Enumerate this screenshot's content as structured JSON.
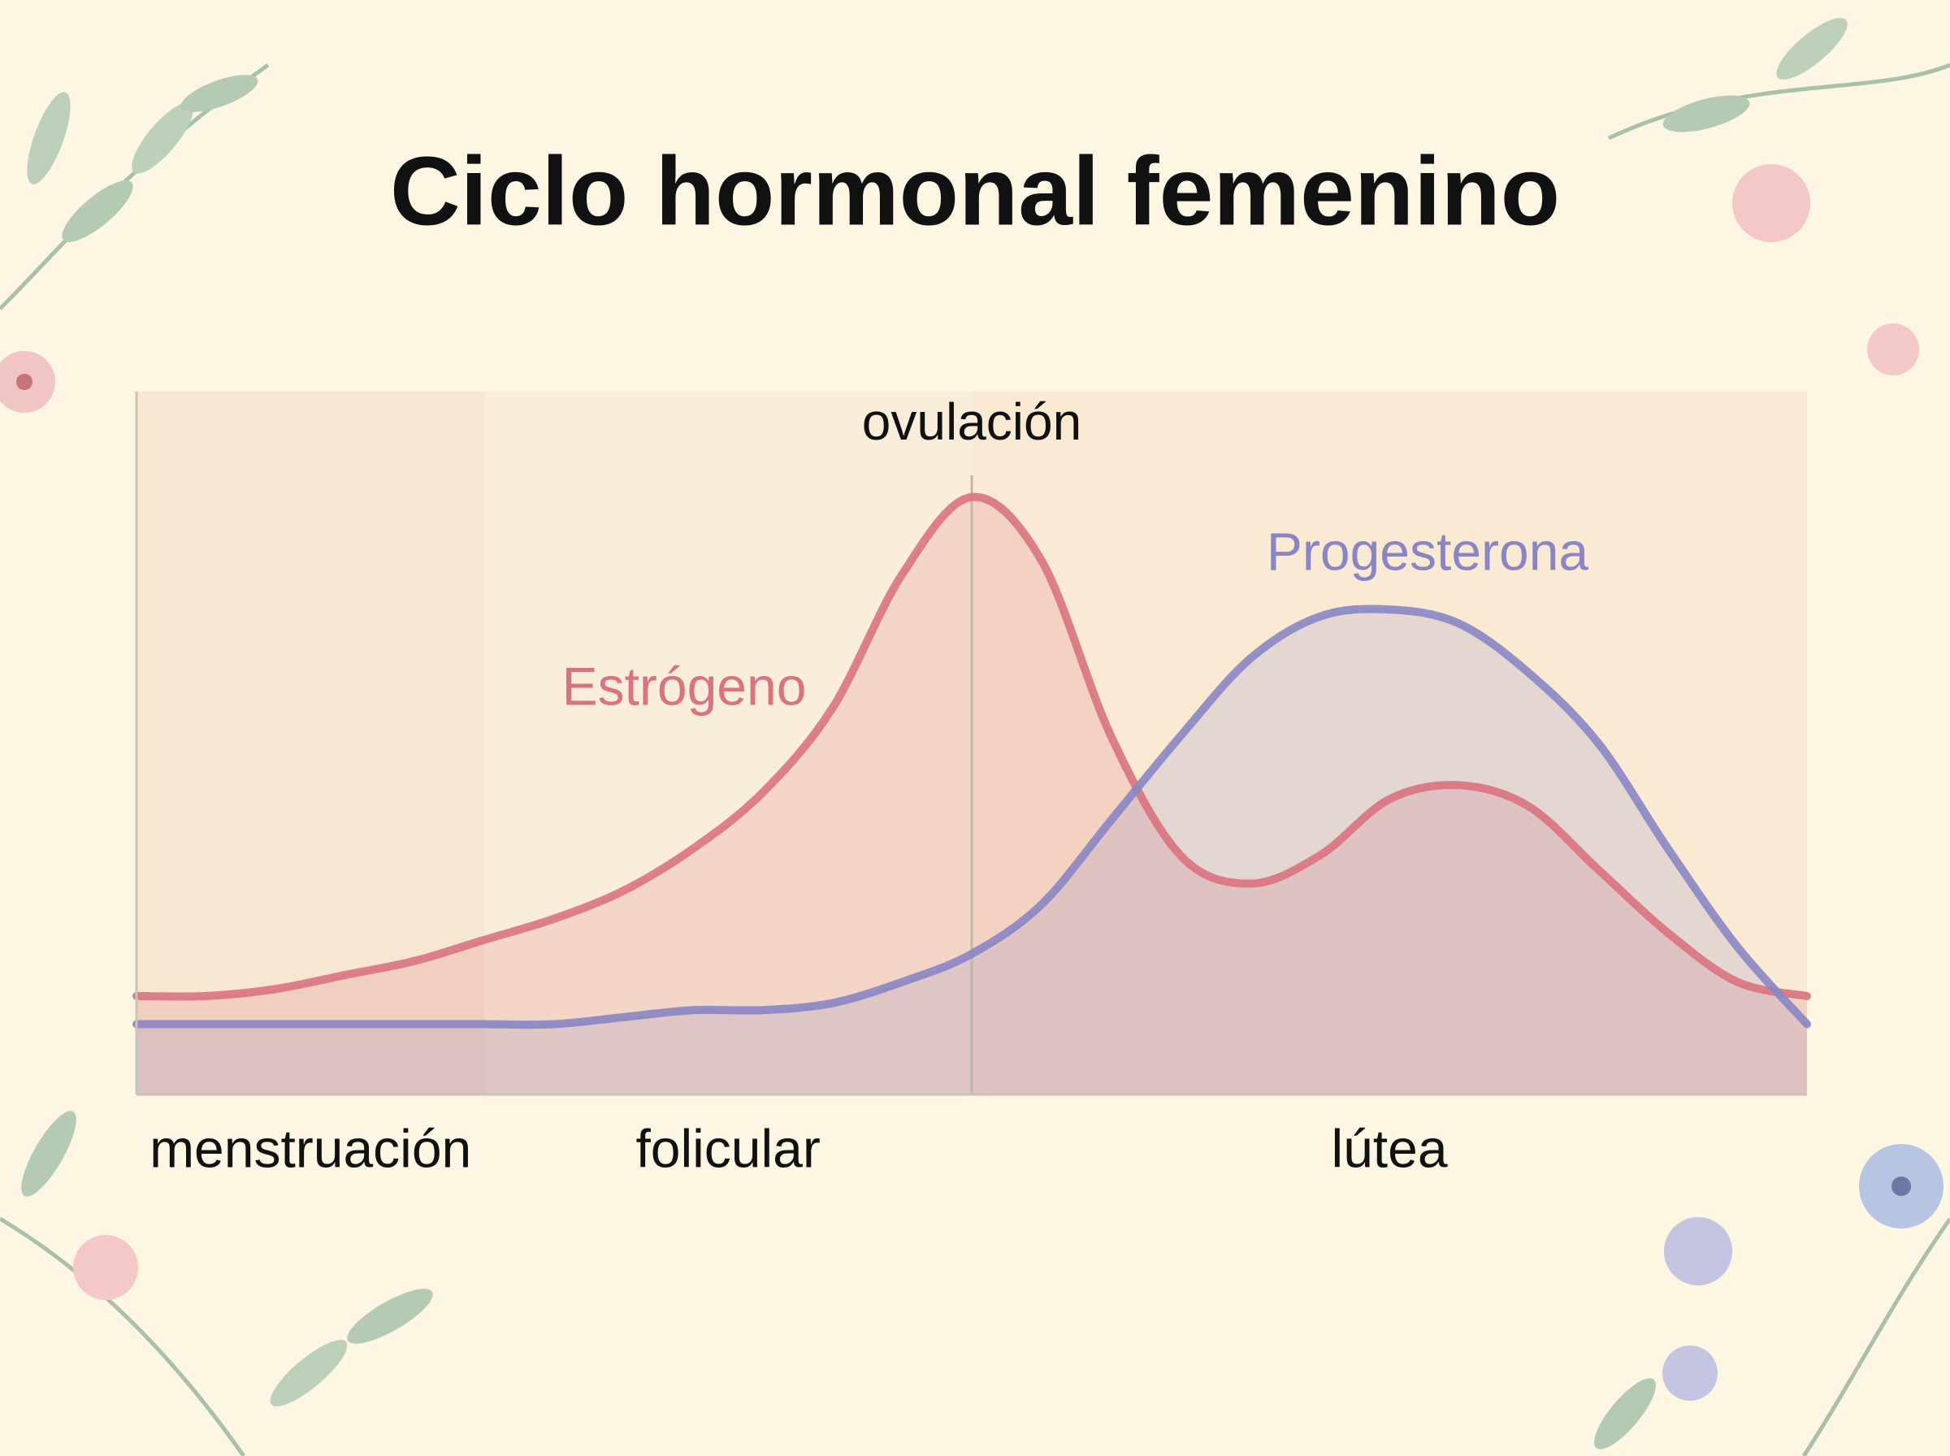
{
  "chart_data": {
    "type": "line",
    "title": "Ciclo hormonal femenino",
    "ylim": [
      0,
      100
    ],
    "series": [
      {
        "name": "Estrógeno",
        "color": "#d9737f",
        "values": [
          14,
          14,
          15,
          17,
          19,
          22,
          25,
          29,
          35,
          43,
          55,
          74,
          85,
          76,
          51,
          34,
          30,
          34,
          42,
          44,
          41,
          32,
          23,
          16,
          14
        ]
      },
      {
        "name": "Progesterona",
        "color": "#8a86c4",
        "values": [
          10,
          10,
          10,
          10,
          10,
          10,
          10,
          11,
          12,
          12,
          13,
          16,
          20,
          27,
          39,
          51,
          62,
          68,
          69,
          67,
          60,
          50,
          35,
          21,
          10
        ]
      }
    ],
    "phases": [
      {
        "label": "menstruación",
        "start": 0,
        "end": 5,
        "color": "#f6e3cc"
      },
      {
        "label": "folicular",
        "start": 5,
        "end": 12,
        "color": "#f9ecd8"
      },
      {
        "label": "lútea",
        "start": 12,
        "end": 24,
        "color": "#f9e6cf"
      }
    ],
    "ovulation": {
      "label": "ovulación",
      "at": 12
    }
  }
}
